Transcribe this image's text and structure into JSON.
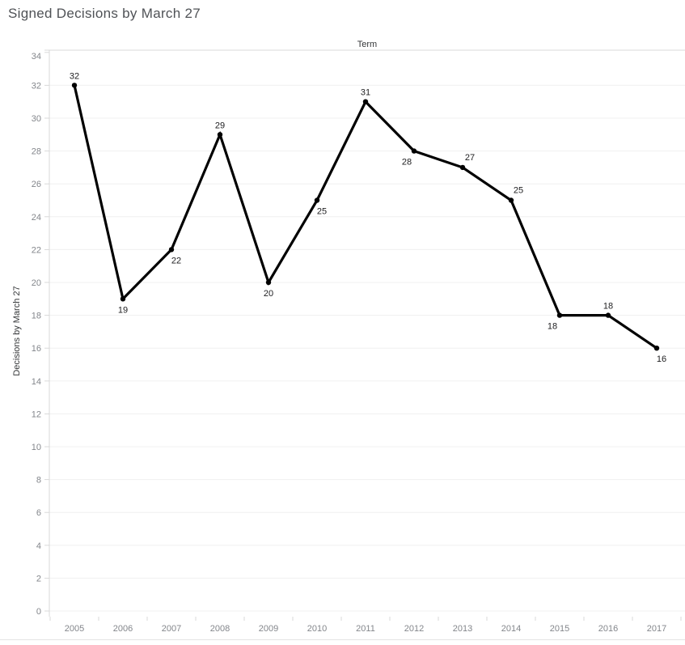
{
  "chart_data": {
    "type": "line",
    "title": "Signed Decisions by March 27",
    "x_axis_title": "Term",
    "y_axis_title": "Decisions by March 27",
    "categories": [
      "2005",
      "2006",
      "2007",
      "2008",
      "2009",
      "2010",
      "2011",
      "2012",
      "2013",
      "2014",
      "2015",
      "2016",
      "2017"
    ],
    "series": [
      {
        "name": "Decisions by March 27",
        "values": [
          32,
          19,
          22,
          29,
          20,
          25,
          31,
          28,
          27,
          25,
          18,
          18,
          16
        ]
      }
    ],
    "data_labels": [
      32,
      19,
      22,
      29,
      20,
      25,
      31,
      28,
      27,
      25,
      18,
      18,
      16
    ],
    "label_placement": [
      "above",
      "below",
      "below-right",
      "above",
      "below",
      "below-right",
      "above",
      "below-left",
      "above-right",
      "above-right",
      "below-left",
      "above",
      "below-right"
    ],
    "ylim": [
      0,
      34
    ],
    "y_tick_step": 2,
    "y_tick_labels": [
      "0",
      "2",
      "4",
      "6",
      "8",
      "10",
      "12",
      "14",
      "16",
      "18",
      "20",
      "22",
      "24",
      "26",
      "28",
      "30",
      "32",
      "34"
    ],
    "grid": true,
    "legend": "none",
    "marker": "circle",
    "colors": {
      "background": "#ffffff",
      "title_text": "#4f5256",
      "axis_title_text": "#343638",
      "tick_label_text": "#83868b",
      "gridline": "#f0f0f0",
      "axis_line": "#d9d9d9",
      "series_line": "#000000",
      "data_label_text": "#1d1d1f",
      "footer_line": "#e4e4e4"
    }
  }
}
